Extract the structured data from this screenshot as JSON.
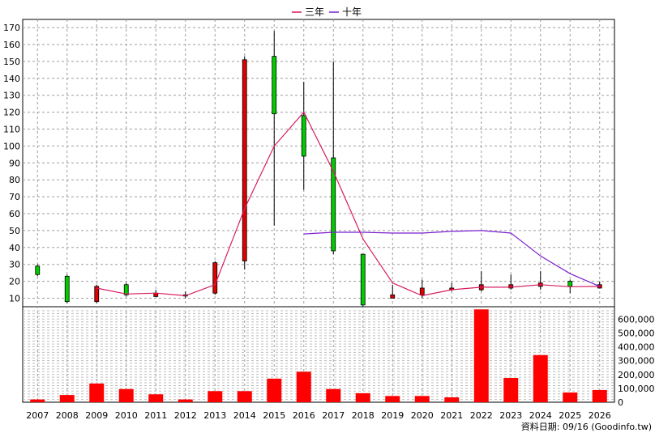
{
  "chart_data": [
    {
      "type": "candlestick",
      "years": [
        "2007",
        "2008",
        "2009",
        "2010",
        "2011",
        "2012",
        "2013",
        "2014",
        "2015",
        "2016",
        "2017",
        "2018",
        "2019",
        "2020",
        "2021",
        "2022",
        "2023",
        "2024",
        "2025",
        "2026"
      ],
      "ohlc": [
        {
          "open": 24,
          "high": 30,
          "low": 23,
          "close": 29
        },
        {
          "open": 8,
          "high": 24,
          "low": 7,
          "close": 23
        },
        {
          "open": 17,
          "high": 18,
          "low": 7,
          "close": 8
        },
        {
          "open": 12,
          "high": 19,
          "low": 11,
          "close": 18
        },
        {
          "open": 13,
          "high": 15,
          "low": 11,
          "close": 11
        },
        {
          "open": 12,
          "high": 14,
          "low": 10,
          "close": 12
        },
        {
          "open": 31,
          "high": 32,
          "low": 12,
          "close": 13
        },
        {
          "open": 151,
          "high": 153,
          "low": 27,
          "close": 32
        },
        {
          "open": 119,
          "high": 168,
          "low": 53,
          "close": 153
        },
        {
          "open": 94,
          "high": 138,
          "low": 74,
          "close": 118
        },
        {
          "open": 38,
          "high": 150,
          "low": 36,
          "close": 93
        },
        {
          "open": 6,
          "high": 36,
          "low": 5,
          "close": 36
        },
        {
          "open": 12,
          "high": 18,
          "low": 11,
          "close": 10
        },
        {
          "open": 16,
          "high": 21,
          "low": 10,
          "close": 12
        },
        {
          "open": 16,
          "high": 19,
          "low": 14,
          "close": 15
        },
        {
          "open": 18,
          "high": 26,
          "low": 14,
          "close": 15
        },
        {
          "open": 18,
          "high": 24,
          "low": 15,
          "close": 16
        },
        {
          "open": 19,
          "high": 26,
          "low": 15,
          "close": 17
        },
        {
          "open": 17,
          "high": 21,
          "low": 13,
          "close": 20
        },
        {
          "open": 18,
          "high": 20,
          "low": 16,
          "close": 16
        }
      ],
      "series": [
        {
          "name": "三年",
          "color": "#d81b60",
          "values": [
            null,
            null,
            16,
            12.5,
            13,
            11.5,
            18,
            63,
            100,
            120,
            85,
            45,
            19,
            11.5,
            15,
            16.5,
            16.5,
            18,
            16.8,
            17
          ]
        },
        {
          "name": "十年",
          "color": "#7b1fcf",
          "values": [
            null,
            null,
            null,
            null,
            null,
            null,
            null,
            null,
            null,
            48,
            49,
            49,
            48.5,
            48.5,
            49.5,
            50,
            48.5,
            35,
            24.5,
            17
          ]
        }
      ],
      "ylim": [
        0,
        170
      ],
      "yticks": [
        10,
        20,
        30,
        40,
        50,
        60,
        70,
        80,
        90,
        100,
        110,
        120,
        130,
        140,
        150,
        160,
        170
      ],
      "grid": true,
      "legend": "top-center"
    },
    {
      "type": "bar",
      "categories": [
        "2007",
        "2008",
        "2009",
        "2010",
        "2011",
        "2012",
        "2013",
        "2014",
        "2015",
        "2016",
        "2017",
        "2018",
        "2019",
        "2020",
        "2021",
        "2022",
        "2023",
        "2024",
        "2025",
        "2026"
      ],
      "values": [
        20000,
        52000,
        135000,
        95000,
        57000,
        20000,
        80000,
        80000,
        170000,
        220000,
        95000,
        65000,
        45000,
        45000,
        35000,
        670000,
        175000,
        340000,
        70000,
        88000
      ],
      "ylim": [
        0,
        680000
      ],
      "yticks": [
        "0",
        "100,000",
        "200,000",
        "300,000",
        "400,000",
        "500,000",
        "600,000"
      ],
      "color": "#ff0000"
    }
  ],
  "footer": "資料日期: 09/16 (Goodinfo.tw)"
}
